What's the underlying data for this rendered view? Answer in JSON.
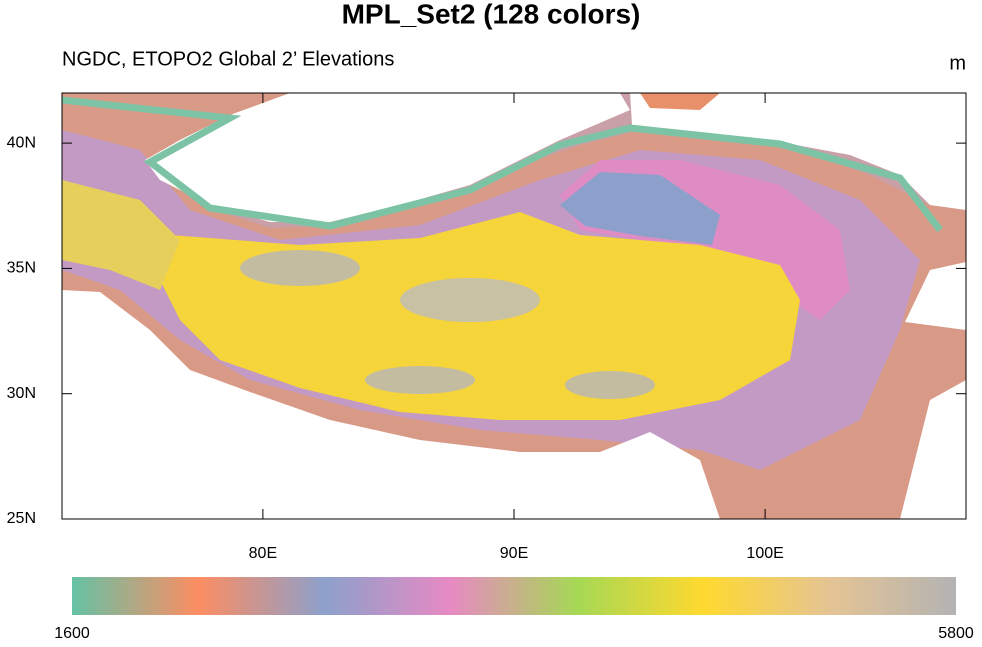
{
  "title": "MPL_Set2 (128 colors)",
  "subtitle": "NGDC, ETOPO2 Global 2’ Elevations",
  "units": "m",
  "lon_range": [
    72,
    108
  ],
  "lat_range": [
    25,
    42
  ],
  "lat_ticks": [
    {
      "value": 25,
      "label": "25N"
    },
    {
      "value": 30,
      "label": "30N"
    },
    {
      "value": 35,
      "label": "35N"
    },
    {
      "value": 40,
      "label": "40N"
    }
  ],
  "lon_ticks": [
    {
      "value": 80,
      "label": "80E"
    },
    {
      "value": 90,
      "label": "90E"
    },
    {
      "value": 100,
      "label": "100E"
    }
  ],
  "colorbar": {
    "range": [
      1600,
      5800
    ],
    "colors": [
      "#66c2a5",
      "#fc8d62",
      "#8da0cb",
      "#e78ac3",
      "#a6d854",
      "#ffd92f",
      "#e5c494",
      "#b3b3b3"
    ]
  }
}
